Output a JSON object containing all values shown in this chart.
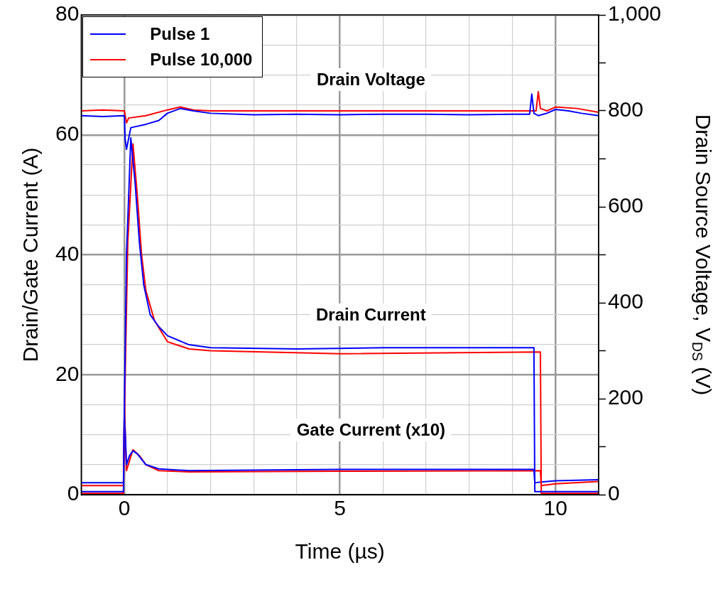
{
  "chart_data": {
    "type": "line",
    "xlabel": "Time (µs)",
    "ylabel": "Drain/Gate Current (A)",
    "y2label": "Drain Source Voltage, V$_{DS}$ (V)",
    "xlim": [
      -1,
      11
    ],
    "xticks": [
      {
        "value": 0,
        "label": "0"
      },
      {
        "value": 1,
        "label": null
      },
      {
        "value": 2,
        "label": null
      },
      {
        "value": 3,
        "label": null
      },
      {
        "value": 4,
        "label": null
      },
      {
        "value": 5,
        "label": "5"
      },
      {
        "value": 6,
        "label": null
      },
      {
        "value": 7,
        "label": null
      },
      {
        "value": 8,
        "label": null
      },
      {
        "value": 9,
        "label": null
      },
      {
        "value": 10,
        "label": "10"
      }
    ],
    "ylim": [
      0,
      80
    ],
    "yticks": [
      0,
      {
        "value": 5,
        "label": null
      },
      {
        "value": 10,
        "label": null
      },
      {
        "value": 15,
        "label": null
      },
      20,
      {
        "value": 25,
        "label": null
      },
      {
        "value": 30,
        "label": null
      },
      {
        "value": 35,
        "label": null
      },
      40,
      {
        "value": 45,
        "label": null
      },
      {
        "value": 50,
        "label": null
      },
      {
        "value": 55,
        "label": null
      },
      60,
      {
        "value": 65,
        "label": null
      },
      {
        "value": 70,
        "label": null
      },
      {
        "value": 75,
        "label": null
      },
      80
    ],
    "y2lim": [
      0,
      1000
    ],
    "y2ticks": [
      0,
      {
        "value": 100,
        "label": null
      },
      200,
      {
        "value": 300,
        "label": null
      },
      400,
      {
        "value": 500,
        "label": null
      },
      600,
      {
        "value": 700,
        "label": null
      },
      800,
      {
        "value": 900,
        "label": null
      },
      {
        "value": 1000,
        "label": "1,000"
      }
    ],
    "grid": true,
    "legend": "top left",
    "marker": "none",
    "line_style": "solid",
    "annotations": [
      "Drain Voltage",
      "Drain Current",
      "Gate Current (x10)"
    ],
    "series": [
      {
        "name": "Pulse 1",
        "color": "#0000ff",
        "axis": "y2",
        "x": [
          -1,
          -0.5,
          0,
          0.02,
          0.05,
          0.15,
          0.5,
          0.8,
          1.0,
          1.3,
          1.6,
          2,
          3,
          4,
          5,
          6,
          7,
          8,
          9,
          9.4,
          9.45,
          9.5,
          9.6,
          9.8,
          10,
          10.3,
          10.6,
          11
        ],
        "values": [
          790,
          788,
          790,
          740,
          720,
          765,
          772,
          780,
          795,
          805,
          800,
          795,
          792,
          793,
          792,
          793,
          793,
          792,
          793,
          793,
          835,
          795,
          790,
          795,
          803,
          800,
          795,
          790
        ]
      },
      {
        "name": "Pulse 10,000",
        "color": "#ff0000",
        "axis": "y2",
        "x": [
          -1,
          -0.5,
          0,
          0.05,
          0.1,
          0.5,
          1.0,
          1.3,
          1.6,
          2,
          3,
          5,
          7,
          9,
          9.55,
          9.6,
          9.65,
          9.8,
          10,
          10.5,
          11
        ],
        "values": [
          800,
          802,
          800,
          775,
          785,
          790,
          802,
          808,
          802,
          800,
          800,
          800,
          800,
          800,
          800,
          840,
          805,
          800,
          808,
          805,
          797
        ]
      },
      {
        "color": "#0000ff",
        "x": [
          -1,
          -0.02,
          0,
          0.05,
          0.15,
          0.25,
          0.35,
          0.45,
          0.6,
          0.8,
          1.0,
          1.5,
          2,
          4,
          6,
          8,
          9.5,
          9.52,
          11
        ],
        "values": [
          0.5,
          0.5,
          14,
          40,
          59.5,
          52,
          42,
          35,
          30,
          28,
          26.5,
          25,
          24.5,
          24.3,
          24.5,
          24.5,
          24.5,
          0.5,
          0.5
        ]
      },
      {
        "color": "#ff0000",
        "x": [
          -1,
          -0.02,
          0.02,
          0.08,
          0.2,
          0.3,
          0.4,
          0.5,
          0.7,
          1.0,
          1.5,
          2,
          5,
          9.65,
          9.67,
          11
        ],
        "values": [
          0.2,
          0.2,
          20,
          42,
          58.5,
          50,
          40,
          34,
          29,
          25.5,
          24.3,
          24,
          23.5,
          23.8,
          0.2,
          0.2
        ]
      },
      {
        "color": "#0000ff",
        "x": [
          -1,
          -0.02,
          0,
          0.05,
          0.12,
          0.2,
          0.3,
          0.5,
          0.8,
          1.5,
          5,
          9.5,
          9.52,
          10,
          11
        ],
        "values": [
          2,
          2,
          14,
          5,
          6.5,
          7.3,
          6.8,
          5,
          4.3,
          4,
          4.2,
          4.2,
          2,
          2.3,
          2.5
        ]
      },
      {
        "color": "#ff0000",
        "x": [
          -1,
          -0.02,
          0,
          0.05,
          0.2,
          0.35,
          0.5,
          0.8,
          1.5,
          5,
          9.65,
          9.67,
          10,
          11
        ],
        "values": [
          1.5,
          1.5,
          15,
          4,
          7.5,
          6.5,
          5,
          4,
          3.8,
          3.9,
          4,
          1.5,
          1.8,
          2.2
        ]
      }
    ]
  }
}
